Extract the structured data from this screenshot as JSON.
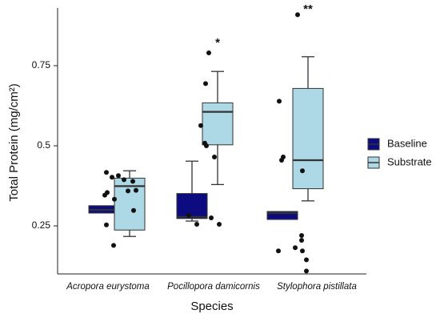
{
  "chart_data": {
    "type": "box",
    "x_label": "Species",
    "y_label": "Total Protein (mg/cm²)",
    "categories": [
      "Acropora eurystoma",
      "Pocillopora damicornis",
      "Stylophora pistillata"
    ],
    "series": [
      {
        "name": "Baseline",
        "color": "#0c0c80",
        "boxes": [
          {
            "min": 0.29,
            "q1": 0.29,
            "median": 0.3,
            "q3": 0.313,
            "max": 0.313
          },
          {
            "min": 0.265,
            "q1": 0.273,
            "median": 0.278,
            "q3": 0.351,
            "max": 0.452
          },
          {
            "min": 0.27,
            "q1": 0.27,
            "median": 0.29,
            "q3": 0.295,
            "max": 0.295
          }
        ]
      },
      {
        "name": "Substrate",
        "color": "#add8e6",
        "boxes": [
          {
            "min": 0.217,
            "q1": 0.237,
            "median": 0.374,
            "q3": 0.399,
            "max": 0.422
          },
          {
            "min": 0.379,
            "q1": 0.503,
            "median": 0.606,
            "q3": 0.634,
            "max": 0.732
          },
          {
            "min": 0.328,
            "q1": 0.366,
            "median": 0.455,
            "q3": 0.679,
            "max": 0.778
          }
        ]
      }
    ],
    "points": [
      [
        0.417,
        0.346,
        0.354,
        0.402,
        0.333,
        0.253,
        0.189,
        0.407,
        0.394,
        0.359,
        0.389,
        0.298,
        0.361
      ],
      [
        0.79,
        0.694,
        0.563,
        0.508,
        0.5,
        0.465,
        0.283,
        0.275,
        0.255,
        0.255
      ],
      [
        0.909,
        0.639,
        0.465,
        0.455,
        0.422,
        0.22,
        0.205,
        0.182,
        0.172,
        0.172,
        0.144,
        0.109
      ]
    ],
    "annotations": [
      {
        "category": 1,
        "text": "*"
      },
      {
        "category": 2,
        "text": "**"
      }
    ],
    "ylim": [
      0.1,
      0.93
    ],
    "yticks": [
      0.25,
      {
        "value": 0.5,
        "label": "0.5"
      },
      0.75
    ],
    "legend": "right"
  }
}
